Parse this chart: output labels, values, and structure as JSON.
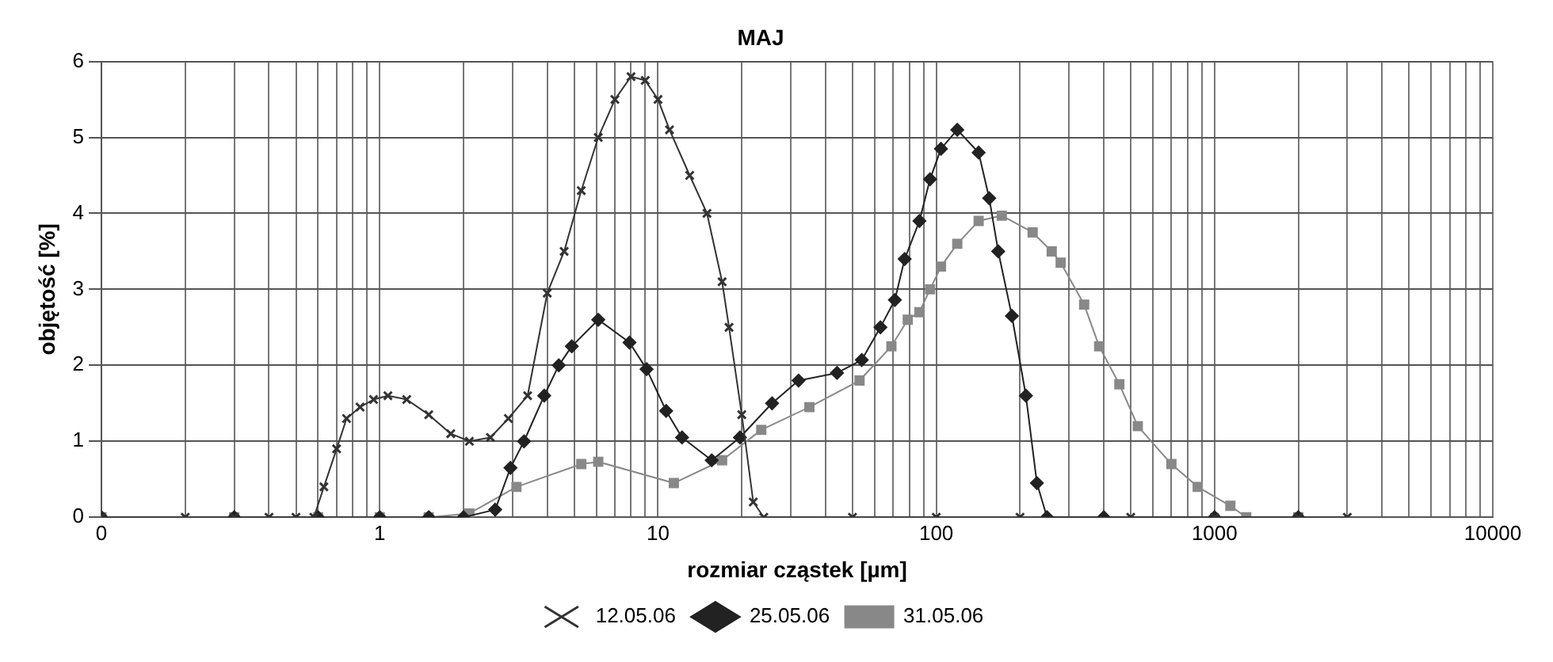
{
  "chart_data": {
    "type": "line",
    "title": "MAJ",
    "xlabel": "rozmiar cząstek [µm]",
    "ylabel": "objętość [%]",
    "log": "x",
    "xlim": [
      0.1,
      10000
    ],
    "ylim": [
      0,
      6
    ],
    "yticks": [
      0,
      1,
      2,
      3,
      4,
      5,
      6
    ],
    "xticks": [
      {
        "value": 0.1,
        "label": "0"
      },
      {
        "value": 0.2,
        "label": null
      },
      {
        "value": 0.3,
        "label": null
      },
      {
        "value": 0.4,
        "label": null
      },
      {
        "value": 0.5,
        "label": null
      },
      {
        "value": 0.6,
        "label": null
      },
      {
        "value": 0.7,
        "label": null
      },
      {
        "value": 0.8,
        "label": null
      },
      {
        "value": 0.9,
        "label": null
      },
      1,
      {
        "value": 2,
        "label": null
      },
      {
        "value": 3,
        "label": null
      },
      {
        "value": 4,
        "label": null
      },
      {
        "value": 5,
        "label": null
      },
      {
        "value": 6,
        "label": null
      },
      {
        "value": 7,
        "label": null
      },
      {
        "value": 8,
        "label": null
      },
      {
        "value": 9,
        "label": null
      },
      10,
      {
        "value": 20,
        "label": null
      },
      {
        "value": 30,
        "label": null
      },
      {
        "value": 40,
        "label": null
      },
      {
        "value": 50,
        "label": null
      },
      {
        "value": 60,
        "label": null
      },
      {
        "value": 70,
        "label": null
      },
      {
        "value": 80,
        "label": null
      },
      {
        "value": 90,
        "label": null
      },
      100,
      {
        "value": 200,
        "label": null
      },
      {
        "value": 300,
        "label": null
      },
      {
        "value": 400,
        "label": null
      },
      {
        "value": 500,
        "label": null
      },
      {
        "value": 600,
        "label": null
      },
      {
        "value": 700,
        "label": null
      },
      {
        "value": 800,
        "label": null
      },
      {
        "value": 900,
        "label": null
      },
      1000,
      {
        "value": 2000,
        "label": null
      },
      {
        "value": 3000,
        "label": null
      },
      {
        "value": 4000,
        "label": null
      },
      {
        "value": 5000,
        "label": null
      },
      {
        "value": 6000,
        "label": null
      },
      {
        "value": 7000,
        "label": null
      },
      {
        "value": 8000,
        "label": null
      },
      {
        "value": 9000,
        "label": null
      },
      10000
    ],
    "grid": true,
    "legend": "bottom",
    "line_style": "solid",
    "series": [
      {
        "name": "12.05.06",
        "color": "#333333",
        "marker": "cross",
        "x": [
          0.1,
          0.2,
          0.3,
          0.4,
          0.5,
          0.58,
          0.63,
          0.7,
          0.76,
          0.85,
          0.95,
          1.07,
          1.25,
          1.5,
          1.8,
          2.1,
          2.5,
          2.9,
          3.4,
          4.0,
          4.6,
          5.3,
          6.1,
          7,
          8,
          9,
          10,
          11,
          13,
          15,
          17,
          18,
          20,
          22,
          24,
          50,
          100,
          200,
          500,
          1000,
          2000,
          3000
        ],
        "values": [
          0,
          0,
          0,
          0,
          0,
          0,
          0.4,
          0.9,
          1.3,
          1.45,
          1.55,
          1.6,
          1.55,
          1.35,
          1.1,
          1.0,
          1.05,
          1.3,
          1.6,
          2.95,
          3.5,
          4.3,
          5.0,
          5.5,
          5.8,
          5.75,
          5.5,
          5.1,
          4.5,
          4.0,
          3.1,
          2.5,
          1.35,
          0.2,
          0,
          0,
          0,
          0,
          0,
          0,
          0,
          0
        ]
      },
      {
        "name": "25.05.06",
        "color": "#222222",
        "marker": "diamond",
        "x": [
          0.1,
          0.3,
          0.6,
          1,
          1.5,
          2.0,
          2.6,
          2.95,
          3.3,
          3.9,
          4.4,
          4.9,
          6.1,
          7.9,
          9.1,
          10.7,
          12.2,
          15.6,
          19.7,
          25.7,
          32,
          44,
          54,
          63,
          71,
          77,
          87,
          95,
          104,
          119,
          142,
          155,
          167,
          187,
          210,
          230,
          250,
          400,
          1000,
          2000
        ],
        "values": [
          0,
          0,
          0,
          0,
          0,
          0,
          0.1,
          0.65,
          1.0,
          1.6,
          2.0,
          2.25,
          2.6,
          2.3,
          1.95,
          1.4,
          1.05,
          0.75,
          1.05,
          1.5,
          1.8,
          1.9,
          2.07,
          2.5,
          2.86,
          3.4,
          3.9,
          4.45,
          4.85,
          5.1,
          4.8,
          4.2,
          3.5,
          2.65,
          1.6,
          0.45,
          0,
          0,
          0,
          0
        ]
      },
      {
        "name": "31.05.06",
        "color": "#888888",
        "marker": "square",
        "x": [
          0.1,
          0.3,
          0.6,
          1,
          1.5,
          2.1,
          3.1,
          5.3,
          6.1,
          11.4,
          17,
          23.5,
          35,
          53,
          69,
          79,
          87,
          95,
          104,
          119,
          142,
          172,
          222,
          260,
          280,
          340,
          385,
          455,
          530,
          700,
          870,
          1140,
          1300,
          2000
        ],
        "values": [
          0,
          0,
          0,
          0,
          0,
          0.05,
          0.4,
          0.7,
          0.73,
          0.45,
          0.75,
          1.15,
          1.45,
          1.8,
          2.25,
          2.6,
          2.7,
          3.0,
          3.3,
          3.6,
          3.9,
          3.97,
          3.75,
          3.5,
          3.35,
          2.8,
          2.25,
          1.75,
          1.2,
          0.7,
          0.4,
          0.15,
          0,
          0
        ]
      }
    ]
  }
}
